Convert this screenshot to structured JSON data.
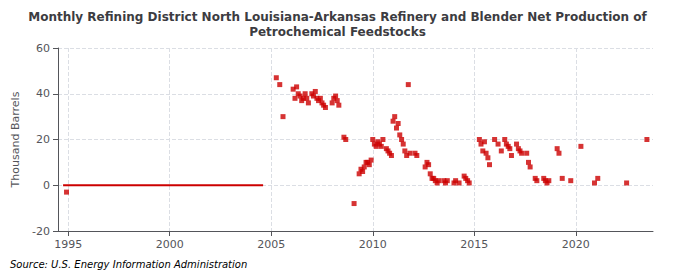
{
  "chart_data": {
    "type": "scatter",
    "title": "Monthly Refining District North Louisiana-Arkansas Refinery and Blender Net Production of\nPetrochemical Feedstocks",
    "ylabel": "Thousand Barrels",
    "source": "Source: U.S. Energy Information Administration",
    "xlim": [
      1994.5,
      2023.8
    ],
    "xticks": [
      1995,
      2000,
      2005,
      2010,
      2015,
      2020
    ],
    "ylim": [
      -20,
      60
    ],
    "yticks": [
      -20,
      0,
      20,
      40,
      60
    ],
    "grid": true,
    "series": [
      {
        "type": "line",
        "color": "#cc0000",
        "line_style": "solid",
        "x": [
          1994.75,
          2004.6
        ],
        "values": [
          0,
          0
        ]
      },
      {
        "type": "scatter",
        "color": "#cc0000",
        "marker": "square",
        "x": [
          1994.92,
          2005.25,
          2005.42,
          2005.58,
          2006.08,
          2006.17,
          2006.25,
          2006.33,
          2006.42,
          2006.5,
          2006.58,
          2006.67,
          2006.75,
          2006.83,
          2007.0,
          2007.08,
          2007.17,
          2007.25,
          2007.33,
          2007.42,
          2007.5,
          2007.58,
          2007.67,
          2008.0,
          2008.08,
          2008.17,
          2008.25,
          2008.33,
          2008.58,
          2008.67,
          2009.08,
          2009.33,
          2009.42,
          2009.5,
          2009.58,
          2009.67,
          2009.75,
          2009.83,
          2009.92,
          2010.0,
          2010.08,
          2010.17,
          2010.25,
          2010.33,
          2010.42,
          2010.5,
          2010.67,
          2010.75,
          2010.83,
          2010.92,
          2011.0,
          2011.08,
          2011.17,
          2011.25,
          2011.33,
          2011.42,
          2011.5,
          2011.58,
          2011.67,
          2011.75,
          2011.83,
          2012.08,
          2012.17,
          2012.58,
          2012.67,
          2012.75,
          2012.83,
          2012.92,
          2013.0,
          2013.08,
          2013.17,
          2013.25,
          2013.5,
          2013.58,
          2013.67,
          2014.0,
          2014.08,
          2014.25,
          2014.5,
          2014.58,
          2014.67,
          2014.75,
          2015.25,
          2015.33,
          2015.42,
          2015.5,
          2015.58,
          2015.67,
          2015.75,
          2016.0,
          2016.17,
          2016.33,
          2016.5,
          2016.58,
          2016.67,
          2016.75,
          2016.83,
          2017.08,
          2017.17,
          2017.25,
          2017.33,
          2017.58,
          2017.67,
          2017.75,
          2018.0,
          2018.08,
          2018.42,
          2018.5,
          2018.58,
          2018.67,
          2019.08,
          2019.17,
          2019.33,
          2019.75,
          2020.25,
          2020.92,
          2021.08,
          2022.5,
          2023.5
        ],
        "values": [
          -3,
          47,
          44,
          30,
          42,
          38,
          43,
          40,
          39,
          37,
          38,
          40,
          38,
          36,
          40,
          39,
          41,
          38,
          37,
          38,
          36,
          35,
          34,
          36,
          38,
          39,
          37,
          35,
          21,
          20,
          -8,
          5,
          7,
          6,
          8,
          10,
          10,
          9,
          11,
          20,
          18,
          17,
          19,
          18,
          17,
          20,
          16,
          15,
          14,
          13,
          28,
          30,
          25,
          27,
          22,
          20,
          18,
          15,
          13,
          44,
          14,
          14,
          13,
          8,
          10,
          9,
          5,
          3,
          3,
          2,
          1,
          2,
          2,
          1,
          2,
          1,
          2,
          1,
          4,
          3,
          2,
          1,
          20,
          18,
          15,
          19,
          14,
          12,
          9,
          20,
          18,
          15,
          20,
          18,
          17,
          16,
          13,
          18,
          16,
          15,
          14,
          14,
          10,
          8,
          3,
          2,
          3,
          2,
          1,
          2,
          16,
          14,
          3,
          2,
          17,
          1,
          3,
          1,
          20
        ]
      }
    ]
  }
}
